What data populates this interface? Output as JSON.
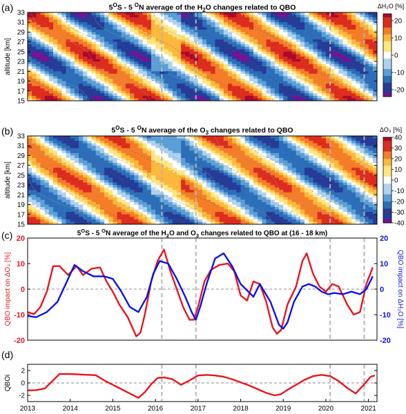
{
  "colors": {
    "red": "#e8141b",
    "blue": "#0a14e6",
    "dash": "#b4b4b4",
    "zero": "#888888"
  },
  "chart_data": [
    {
      "type": "heatmap",
      "panel_label": "(a)",
      "title_parts": [
        "5",
        "O",
        "S - 5 ",
        "O",
        "N average of the H",
        "2",
        "O changes related to QBO"
      ],
      "ylabel": "altitude [km]",
      "yticks": [
        15,
        17,
        19,
        21,
        23,
        25,
        27,
        29,
        31,
        33
      ],
      "ylim": [
        15,
        33
      ],
      "xlim": [
        2013,
        2021.2
      ],
      "colorbar_label": "ΔH₂O [%]",
      "colorbar_ticks": [
        20,
        10,
        0,
        -10,
        -20
      ],
      "colorbar_range": [
        -24,
        24
      ],
      "event_lines": [
        2016.15,
        2016.95,
        2020.1,
        2020.9
      ]
    },
    {
      "type": "heatmap",
      "panel_label": "(b)",
      "title_parts": [
        "5",
        "O",
        "S - 5 ",
        "O",
        "N average of the O",
        "3",
        " changes related to QBO"
      ],
      "ylabel": "altitude [km]",
      "yticks": [
        15,
        17,
        19,
        21,
        23,
        25,
        27,
        29,
        31,
        33
      ],
      "ylim": [
        15,
        33
      ],
      "xlim": [
        2013,
        2021.2
      ],
      "colorbar_label": "ΔO₃ [%]",
      "colorbar_ticks": [
        40,
        30,
        20,
        10,
        0,
        -10,
        -20,
        -30,
        -40
      ],
      "colorbar_range": [
        -40,
        40
      ],
      "event_lines": [
        2016.15,
        2016.95,
        2020.1,
        2020.9
      ]
    },
    {
      "type": "line",
      "panel_label": "(c)",
      "title_parts": [
        "5",
        "O",
        "S - 5 ",
        "O",
        "N average of the H",
        "2",
        "O and O",
        "3",
        " changes related to QBO at (16 - 18 km)"
      ],
      "ylabel_left": "QBO impact on ΔO₃ [%]",
      "ylabel_right": "QBO impact on ΔH₂O [%]",
      "ylim_left": [
        -20,
        20
      ],
      "yticks_left": [
        20,
        10,
        0,
        -10,
        -20
      ],
      "ylim_right": [
        -20,
        20
      ],
      "yticks_right": [
        20,
        10,
        0,
        -10,
        -20
      ],
      "xlim": [
        2013,
        2021.2
      ],
      "event_lines": [
        2016.15,
        2016.95,
        2020.1,
        2020.9
      ],
      "series": [
        {
          "axis": "left",
          "color": "red",
          "x": [
            2013.0,
            2013.15,
            2013.3,
            2013.45,
            2013.6,
            2013.75,
            2013.95,
            2014.15,
            2014.3,
            2014.5,
            2014.7,
            2014.85,
            2015.0,
            2015.15,
            2015.35,
            2015.55,
            2015.65,
            2015.75,
            2015.9,
            2016.05,
            2016.2,
            2016.35,
            2016.5,
            2016.65,
            2016.8,
            2016.9,
            2017.0,
            2017.15,
            2017.3,
            2017.5,
            2017.7,
            2017.85,
            2018.0,
            2018.15,
            2018.3,
            2018.45,
            2018.6,
            2018.75,
            2018.85,
            2018.95,
            2019.1,
            2019.3,
            2019.45,
            2019.55,
            2019.7,
            2019.85,
            2020.0,
            2020.15,
            2020.3,
            2020.5,
            2020.65,
            2020.8,
            2020.95,
            2021.1
          ],
          "y": [
            -9,
            -9.8,
            -7,
            -1,
            9,
            9,
            5.5,
            9,
            5.5,
            8,
            8.5,
            3,
            -1,
            -6,
            -11,
            -18.5,
            -17,
            -10,
            3,
            11,
            15.5,
            7,
            0,
            -7,
            -12,
            -12,
            -7,
            3,
            7.5,
            9.5,
            10,
            7,
            -2.5,
            -4.5,
            3,
            2,
            -5,
            -15,
            -17.5,
            -16,
            -6,
            1,
            11,
            14,
            6,
            1,
            -1,
            2,
            1,
            -6,
            -10,
            -9,
            2,
            8.5
          ]
        },
        {
          "axis": "right",
          "color": "blue",
          "x": [
            2013.0,
            2013.2,
            2013.45,
            2013.7,
            2013.95,
            2014.1,
            2014.3,
            2014.55,
            2014.8,
            2015.0,
            2015.2,
            2015.4,
            2015.6,
            2015.8,
            2015.95,
            2016.1,
            2016.3,
            2016.5,
            2016.7,
            2016.85,
            2016.95,
            2017.05,
            2017.2,
            2017.4,
            2017.6,
            2017.8,
            2018.0,
            2018.15,
            2018.3,
            2018.45,
            2018.7,
            2018.9,
            2019.0,
            2019.1,
            2019.25,
            2019.45,
            2019.6,
            2019.75,
            2019.9,
            2020.05,
            2020.2,
            2020.4,
            2020.6,
            2020.8,
            2020.95,
            2021.1
          ],
          "y": [
            -10.5,
            -11,
            -9,
            -5,
            4,
            9.5,
            7,
            5,
            5,
            4,
            -1,
            -7,
            -9,
            -3,
            6,
            11,
            10,
            4,
            -3,
            -9,
            -12,
            -7,
            2,
            12,
            14,
            9,
            2,
            -0.5,
            -3,
            2,
            -5,
            -14,
            -15.5,
            -13,
            -5,
            1,
            2,
            1,
            -1,
            -2,
            -1.5,
            -2,
            -1,
            -2,
            0,
            5
          ]
        }
      ]
    },
    {
      "type": "line",
      "panel_label": "(d)",
      "ylabel": "QBOi",
      "ylim": [
        -3,
        3
      ],
      "yticks": [
        2,
        0,
        -2
      ],
      "xlim": [
        2013,
        2021.2
      ],
      "xticks": [
        2013,
        2014,
        2015,
        2016,
        2017,
        2018,
        2019,
        2020,
        2021
      ],
      "event_lines": [
        2016.15,
        2016.95,
        2020.1,
        2020.9
      ],
      "series": [
        {
          "color": "red",
          "x": [
            2013.0,
            2013.2,
            2013.4,
            2013.55,
            2013.75,
            2014.0,
            2014.3,
            2014.6,
            2014.8,
            2015.0,
            2015.2,
            2015.4,
            2015.6,
            2015.75,
            2015.9,
            2016.05,
            2016.2,
            2016.4,
            2016.6,
            2016.8,
            2017.0,
            2017.2,
            2017.4,
            2017.6,
            2017.8,
            2018.0,
            2018.2,
            2018.4,
            2018.6,
            2018.8,
            2018.95,
            2019.1,
            2019.3,
            2019.5,
            2019.7,
            2019.9,
            2020.1,
            2020.3,
            2020.5,
            2020.7,
            2020.9,
            2021.05,
            2021.15
          ],
          "y": [
            -1.2,
            -1.15,
            -0.9,
            0.1,
            1.45,
            1.45,
            1.35,
            1.25,
            0.4,
            -0.3,
            -1.0,
            -1.7,
            -2.4,
            -1.5,
            -0.2,
            0.8,
            0.9,
            0.6,
            -0.3,
            0.4,
            1.2,
            1.3,
            1.2,
            1.0,
            0.6,
            0.1,
            -0.4,
            -1.0,
            -1.6,
            -2.0,
            -1.8,
            -1.1,
            -0.3,
            0.5,
            1.1,
            1.3,
            1.1,
            0.3,
            -0.8,
            -1.7,
            -0.2,
            1.0,
            1.2
          ]
        }
      ]
    }
  ]
}
